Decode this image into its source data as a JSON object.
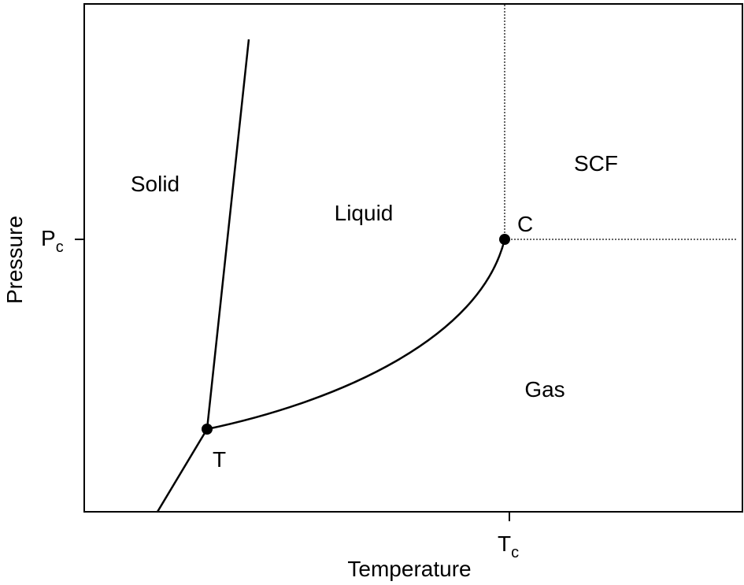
{
  "axes": {
    "x_label": "Temperature",
    "y_label": "Pressure",
    "x_tick": {
      "main": "T",
      "sub": "c"
    },
    "y_tick": {
      "main": "P",
      "sub": "c"
    }
  },
  "regions": [
    "Solid",
    "Liquid",
    "SCF",
    "Gas"
  ],
  "points": {
    "triple": "T",
    "critical": "C"
  }
}
